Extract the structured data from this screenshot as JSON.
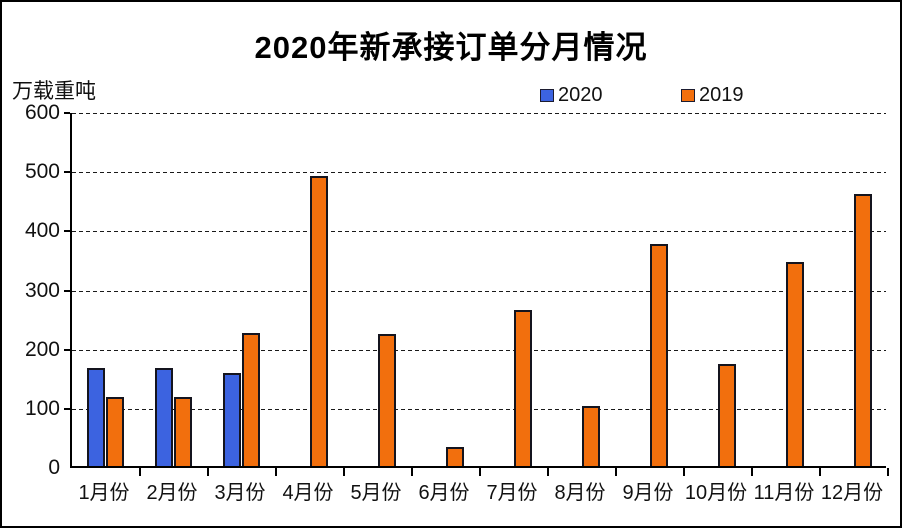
{
  "title": "2020年新承接订单分月情况",
  "y_axis_unit": "万载重吨",
  "legend": [
    {
      "label": "2020",
      "color": "#3c63e0"
    },
    {
      "label": "2019",
      "color": "#f26f0d"
    }
  ],
  "chart_data": {
    "type": "bar",
    "title": "2020年新承接订单分月情况",
    "ylabel": "万载重吨",
    "categories": [
      "1月份",
      "2月份",
      "3月份",
      "4月份",
      "5月份",
      "6月份",
      "7月份",
      "8月份",
      "9月份",
      "10月份",
      "11月份",
      "12月份"
    ],
    "series": [
      {
        "name": "2020",
        "color": "#3c63e0",
        "values": [
          165,
          165,
          157,
          null,
          null,
          null,
          null,
          null,
          null,
          null,
          null,
          null
        ]
      },
      {
        "name": "2019",
        "color": "#f26f0d",
        "values": [
          117,
          117,
          225,
          490,
          223,
          32,
          263,
          102,
          375,
          172,
          345,
          460
        ]
      }
    ],
    "ylim": [
      0,
      600
    ],
    "ytick_step": 100,
    "y_tick_labels": [
      "600",
      "500",
      "400",
      "300",
      "200",
      "100",
      "0"
    ],
    "grid": "horizontal-dashed",
    "legend_position": "top"
  }
}
